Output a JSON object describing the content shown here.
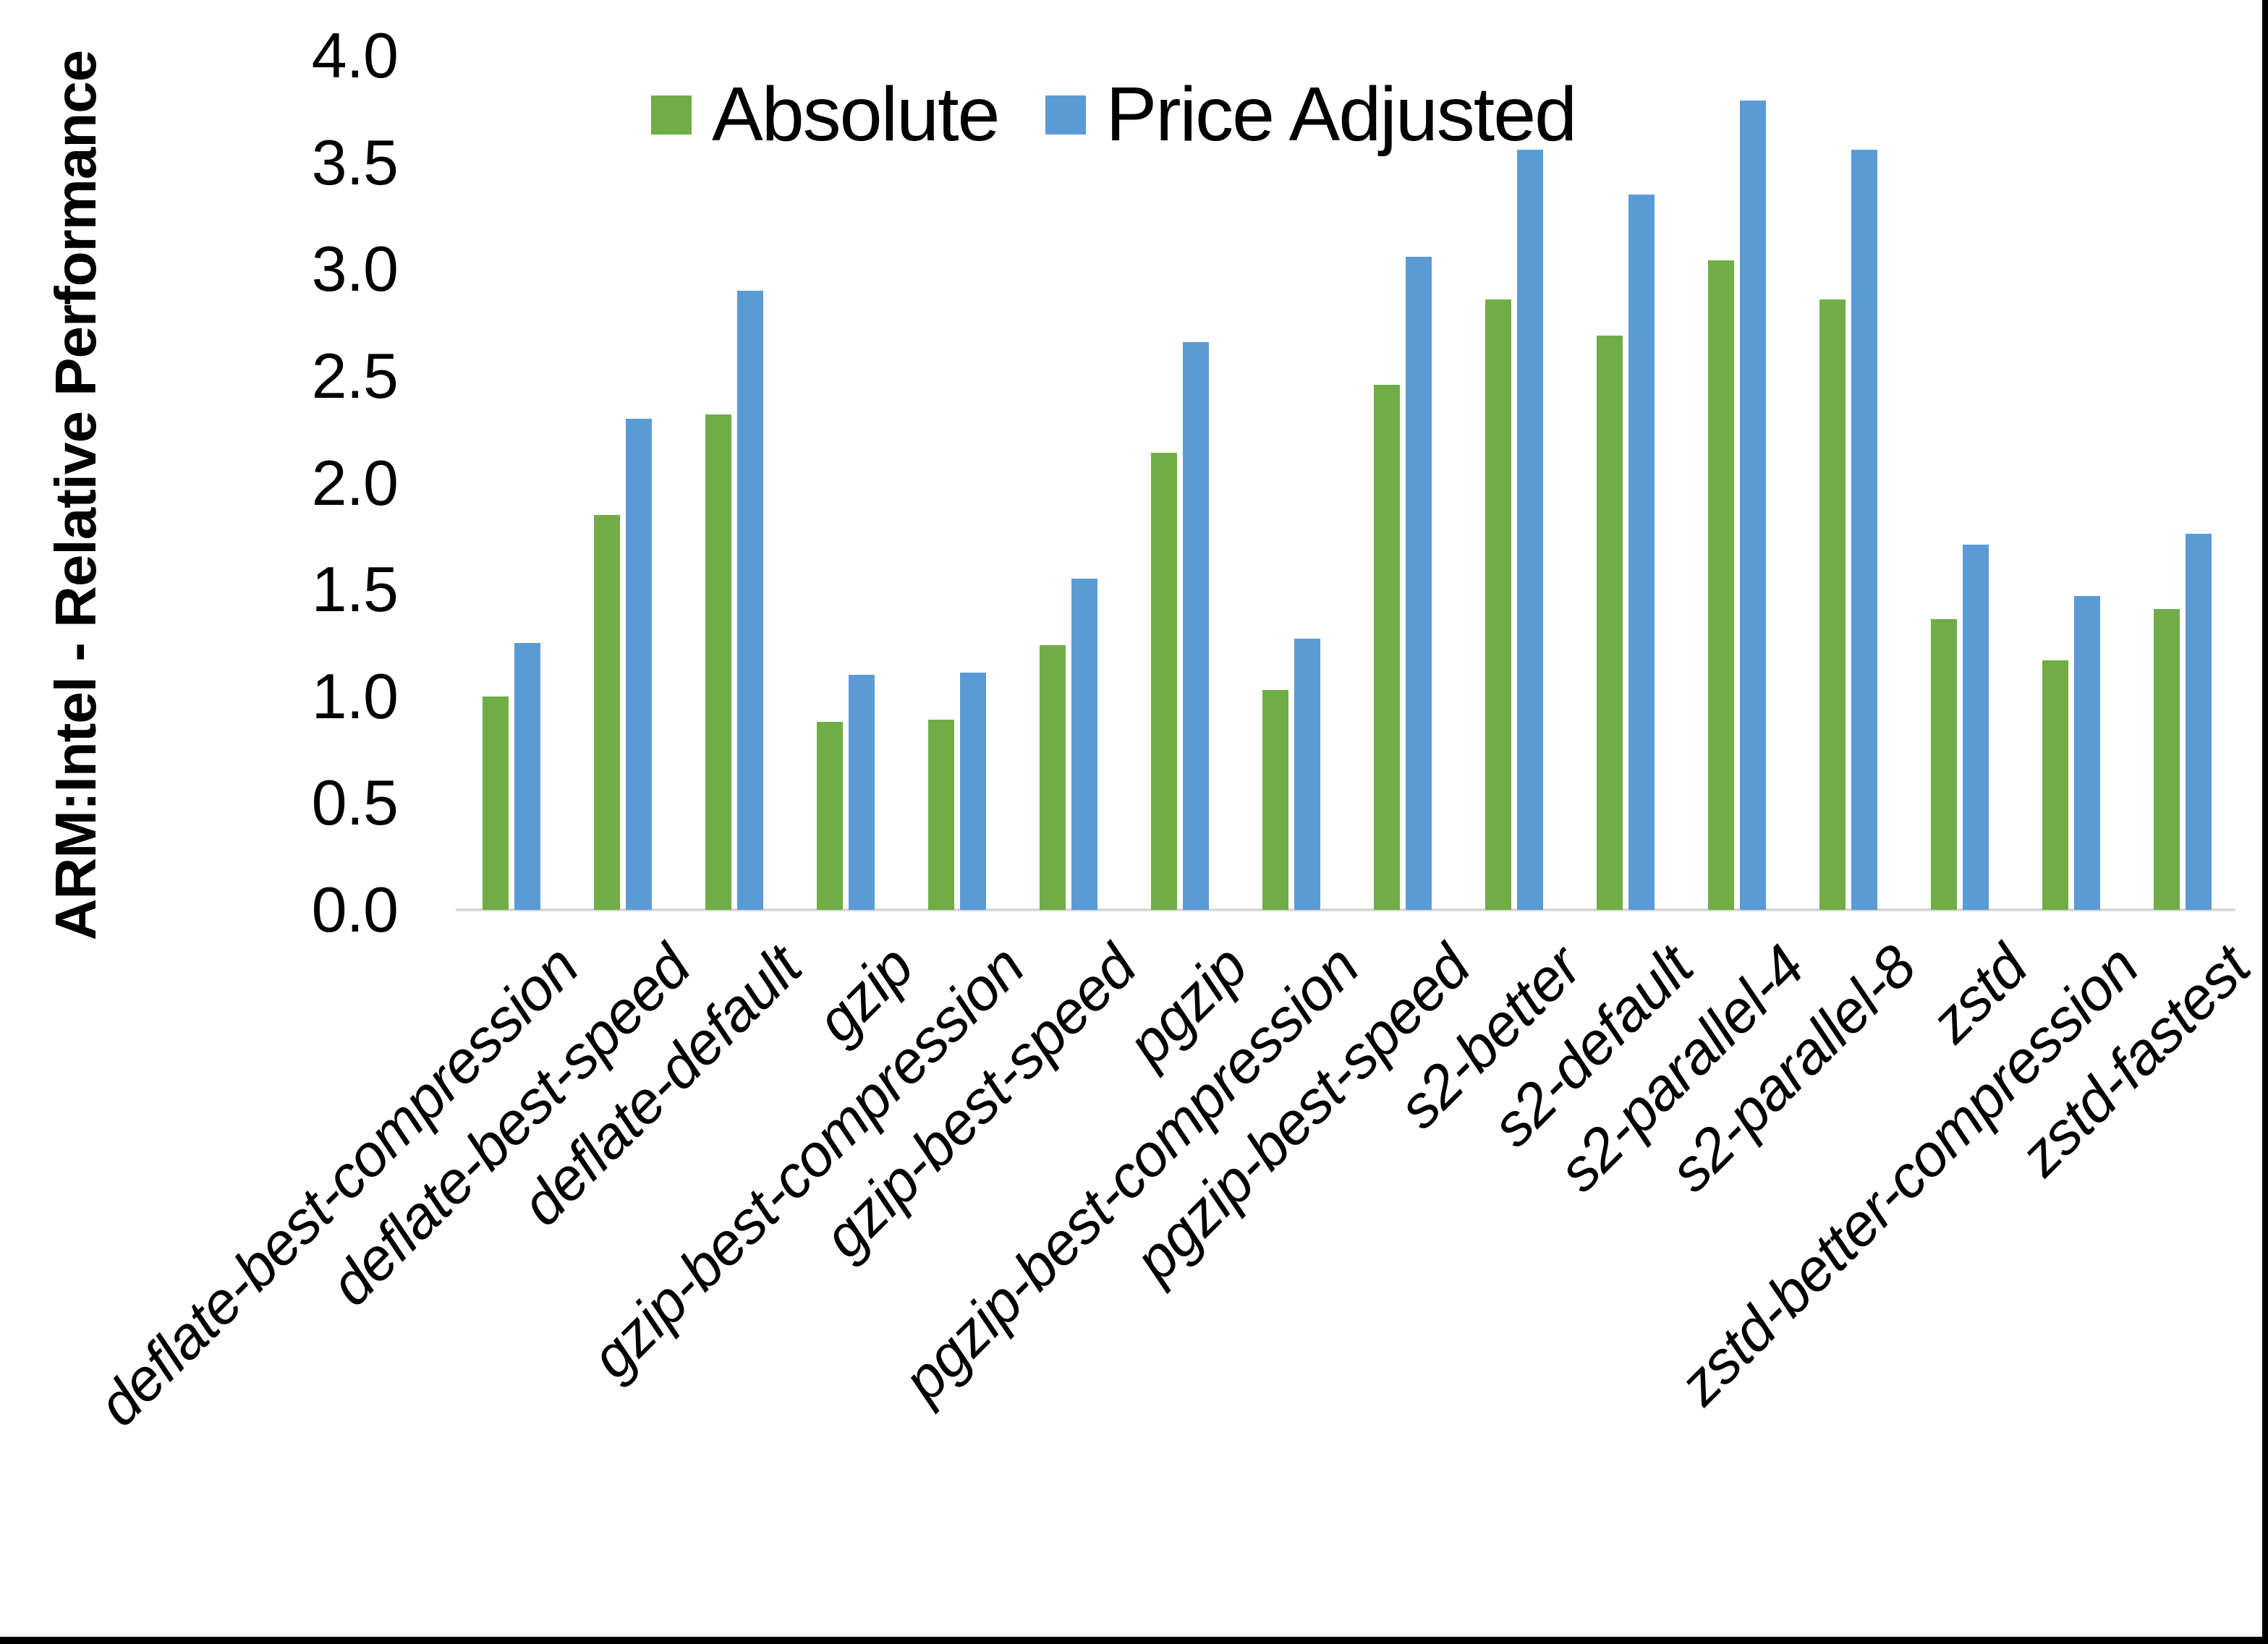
{
  "y_axis": {
    "title": "ARM:Intel - Relative Performance",
    "tick_labels": [
      "0.0",
      "0.5",
      "1.0",
      "1.5",
      "2.0",
      "2.5",
      "3.0",
      "3.5",
      "4.0"
    ],
    "min": 0.0,
    "max": 4.0,
    "step": 0.5
  },
  "legend": {
    "items": [
      {
        "label": "Absolute",
        "color": "#70AD47"
      },
      {
        "label": "Price Adjusted",
        "color": "#5B9BD5"
      }
    ]
  },
  "colors": {
    "absolute": "#70AD47",
    "price_adjusted": "#5B9BD5",
    "axis_line": "#D9D9D9",
    "text": "#000000",
    "frame": "#000000"
  },
  "chart_data": {
    "type": "bar",
    "title": "",
    "xlabel": "",
    "ylabel": "ARM:Intel - Relative Performance",
    "ylim": [
      0.0,
      4.0
    ],
    "grid": false,
    "legend_position": "top",
    "categories": [
      "deflate-best-compression",
      "deflate-best-speed",
      "deflate-default",
      "gzip",
      "gzip-best-compression",
      "gzip-best-speed",
      "pgzip",
      "pgzip-best-compression",
      "pgzip-best-speed",
      "s2-better",
      "s2-default",
      "s2-parallel-4",
      "s2-parallel-8",
      "zstd",
      "zstd-better-compression",
      "zstd-fastest"
    ],
    "series": [
      {
        "name": "Absolute",
        "color": "#70AD47",
        "values": [
          1.0,
          1.85,
          2.32,
          0.88,
          0.89,
          1.24,
          2.14,
          1.03,
          2.46,
          2.86,
          2.69,
          3.04,
          2.86,
          1.36,
          1.17,
          1.41
        ]
      },
      {
        "name": "Price Adjusted",
        "color": "#5B9BD5",
        "values": [
          1.25,
          2.3,
          2.9,
          1.1,
          1.11,
          1.55,
          2.66,
          1.27,
          3.06,
          3.56,
          3.35,
          3.79,
          3.56,
          1.71,
          1.47,
          1.76
        ]
      }
    ]
  }
}
